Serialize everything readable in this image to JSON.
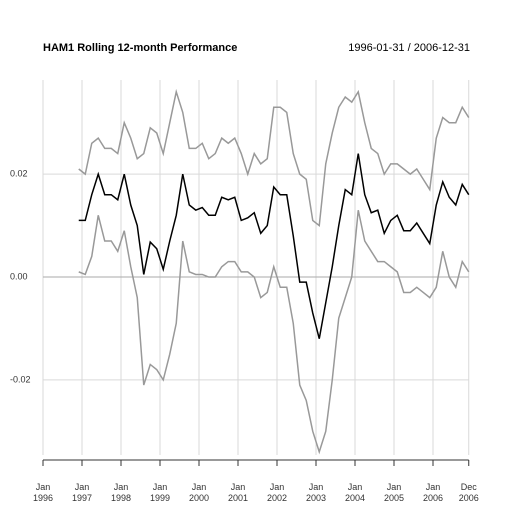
{
  "chart_data": {
    "type": "line",
    "title": "HAM1 Rolling 12-month Performance",
    "subtitle": "1996-01-31 / 2006-12-31",
    "x": [
      "1996-12",
      "1997-02",
      "1997-04",
      "1997-06",
      "1997-08",
      "1997-10",
      "1997-12",
      "1998-02",
      "1998-04",
      "1998-06",
      "1998-08",
      "1998-10",
      "1998-12",
      "1999-02",
      "1999-04",
      "1999-06",
      "1999-08",
      "1999-10",
      "1999-12",
      "2000-02",
      "2000-04",
      "2000-06",
      "2000-08",
      "2000-10",
      "2000-12",
      "2001-02",
      "2001-04",
      "2001-06",
      "2001-08",
      "2001-10",
      "2001-12",
      "2002-02",
      "2002-04",
      "2002-06",
      "2002-08",
      "2002-10",
      "2002-12",
      "2003-02",
      "2003-04",
      "2003-06",
      "2003-08",
      "2003-10",
      "2003-12",
      "2004-02",
      "2004-04",
      "2004-06",
      "2004-08",
      "2004-10",
      "2004-12",
      "2005-02",
      "2005-04",
      "2005-06",
      "2005-08",
      "2005-10",
      "2005-12",
      "2006-02",
      "2006-04",
      "2006-06",
      "2006-08",
      "2006-10",
      "2006-12"
    ],
    "series": [
      {
        "color": "#999999",
        "values": [
          0.021,
          0.02,
          0.026,
          0.027,
          0.025,
          0.025,
          0.024,
          0.03,
          0.027,
          0.023,
          0.024,
          0.029,
          0.028,
          0.024,
          0.03,
          0.036,
          0.032,
          0.025,
          0.025,
          0.026,
          0.023,
          0.024,
          0.027,
          0.026,
          0.027,
          0.024,
          0.02,
          0.024,
          0.022,
          0.023,
          0.033,
          0.033,
          0.032,
          0.024,
          0.02,
          0.019,
          0.011,
          0.01,
          0.022,
          0.028,
          0.033,
          0.035,
          0.034,
          0.036,
          0.03,
          0.025,
          0.024,
          0.02,
          0.022,
          0.022,
          0.021,
          0.02,
          0.021,
          0.019,
          0.017,
          0.027,
          0.031,
          0.03,
          0.03,
          0.033,
          0.031
        ]
      },
      {
        "color": "#999999",
        "values": [
          0.001,
          0.0005,
          0.004,
          0.012,
          0.007,
          0.007,
          0.005,
          0.009,
          0.002,
          -0.004,
          -0.021,
          -0.017,
          -0.018,
          -0.02,
          -0.015,
          -0.009,
          0.007,
          0.001,
          0.0005,
          0.0005,
          0.0,
          0.0,
          0.002,
          0.003,
          0.003,
          0.001,
          0.001,
          0.0,
          -0.004,
          -0.003,
          0.002,
          -0.002,
          -0.002,
          -0.009,
          -0.021,
          -0.024,
          -0.03,
          -0.034,
          -0.03,
          -0.02,
          -0.008,
          -0.004,
          0.0,
          0.013,
          0.007,
          0.005,
          0.003,
          0.003,
          0.002,
          0.001,
          -0.003,
          -0.003,
          -0.002,
          -0.003,
          -0.004,
          -0.002,
          0.005,
          0.0,
          -0.002,
          0.003,
          0.001
        ]
      },
      {
        "color": "#000000",
        "values": [
          0.011,
          0.011,
          0.016,
          0.02,
          0.016,
          0.016,
          0.015,
          0.02,
          0.014,
          0.01,
          0.0005,
          0.0068,
          0.0055,
          0.0015,
          0.007,
          0.012,
          0.02,
          0.014,
          0.013,
          0.0135,
          0.012,
          0.012,
          0.0155,
          0.015,
          0.0155,
          0.011,
          0.0115,
          0.0125,
          0.0085,
          0.01,
          0.0175,
          0.016,
          0.016,
          0.008,
          -0.001,
          -0.001,
          -0.007,
          -0.012,
          -0.005,
          0.002,
          0.01,
          0.017,
          0.016,
          0.024,
          0.016,
          0.0125,
          0.013,
          0.0085,
          0.011,
          0.012,
          0.009,
          0.009,
          0.0105,
          0.0085,
          0.0065,
          0.014,
          0.0185,
          0.0155,
          0.014,
          0.018,
          0.016
        ]
      }
    ],
    "xlim": [
      "1996-01",
      "2006-12"
    ],
    "xticks": [
      {
        "value": "1996-01",
        "label": "Jan\n1996"
      },
      {
        "value": "1997-01",
        "label": "Jan\n1997"
      },
      {
        "value": "1998-01",
        "label": "Jan\n1998"
      },
      {
        "value": "1999-01",
        "label": "Jan\n1999"
      },
      {
        "value": "2000-01",
        "label": "Jan\n2000"
      },
      {
        "value": "2001-01",
        "label": "Jan\n2001"
      },
      {
        "value": "2002-01",
        "label": "Jan\n2002"
      },
      {
        "value": "2003-01",
        "label": "Jan\n2003"
      },
      {
        "value": "2004-01",
        "label": "Jan\n2004"
      },
      {
        "value": "2005-01",
        "label": "Jan\n2005"
      },
      {
        "value": "2006-01",
        "label": "Jan\n2006"
      },
      {
        "value": "2006-12",
        "label": "Dec\n2006"
      }
    ],
    "ylim": [
      -0.0346,
      0.0383
    ],
    "yticks": [
      0.02,
      {
        "value": 0,
        "label": "0.00"
      },
      -0.02
    ],
    "grid": true
  }
}
